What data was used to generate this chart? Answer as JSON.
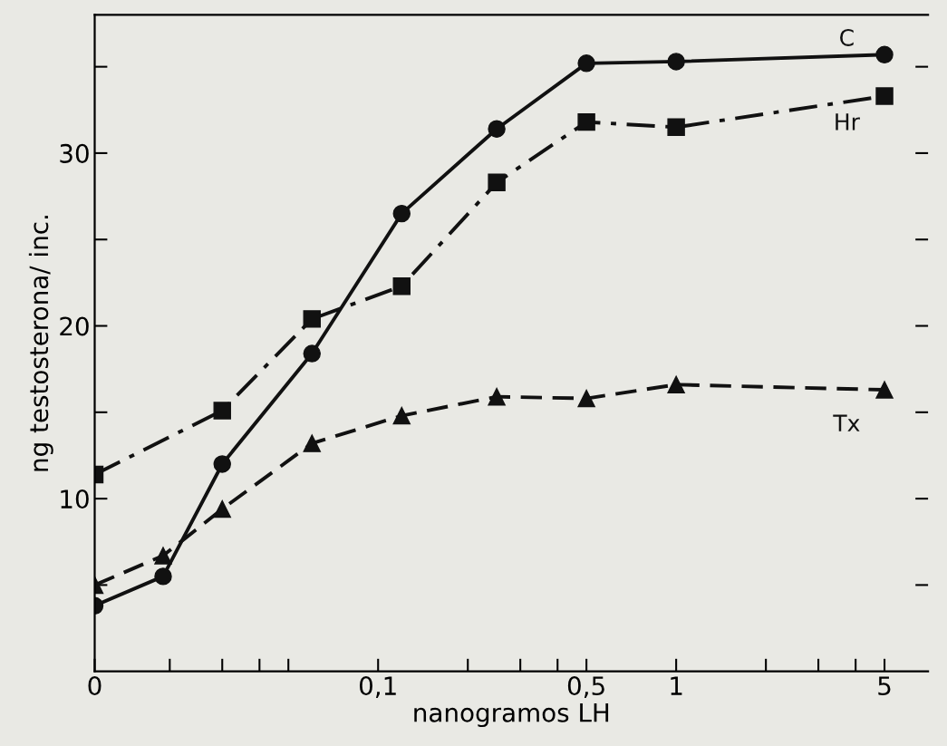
{
  "chart_data": {
    "type": "line",
    "xlabel": "nanogramos LH",
    "ylabel": "ng testosterona/ inc.",
    "x": [
      0.0112,
      0.019,
      0.03,
      0.06,
      0.12,
      0.25,
      0.5,
      1,
      5
    ],
    "series": [
      {
        "name": "C",
        "color": "#111111",
        "marker": "circle",
        "line_style": "solid",
        "values": [
          3.8,
          5.5,
          12.0,
          18.4,
          26.5,
          31.4,
          35.2,
          35.3,
          35.7
        ]
      },
      {
        "name": "Hr",
        "color": "#111111",
        "marker": "square",
        "line_style": "dotted",
        "values": [
          11.4,
          null,
          15.1,
          20.4,
          22.3,
          28.3,
          31.8,
          31.5,
          33.3
        ]
      },
      {
        "name": "Tx",
        "color": "#111111",
        "marker": "triangle",
        "line_style": "dashed",
        "values": [
          5.0,
          6.7,
          9.4,
          13.2,
          14.8,
          15.9,
          15.8,
          16.6,
          16.3
        ]
      }
    ],
    "log": "x",
    "xlim": [
      0.0112,
      7
    ],
    "ylim": [
      0,
      38
    ],
    "xticks": [
      {
        "value": 0.0112,
        "label": "0"
      },
      {
        "value": 0.02,
        "label": null
      },
      {
        "value": 0.03,
        "label": null
      },
      {
        "value": 0.04,
        "label": null
      },
      {
        "value": 0.05,
        "label": null
      },
      {
        "value": 0.1,
        "label": "0,1"
      },
      {
        "value": 0.2,
        "label": null
      },
      {
        "value": 0.3,
        "label": null
      },
      {
        "value": 0.4,
        "label": null
      },
      {
        "value": 0.5,
        "label": "0,5"
      },
      1,
      {
        "value": 2,
        "label": null
      },
      {
        "value": 3,
        "label": null
      },
      {
        "value": 4,
        "label": null
      },
      5
    ],
    "yticks": [
      {
        "value": 5,
        "label": null
      },
      10,
      {
        "value": 15,
        "label": null
      },
      20,
      {
        "value": 25,
        "label": null
      },
      30,
      {
        "value": 35,
        "label": null
      }
    ],
    "grid": false,
    "legend": false
  }
}
